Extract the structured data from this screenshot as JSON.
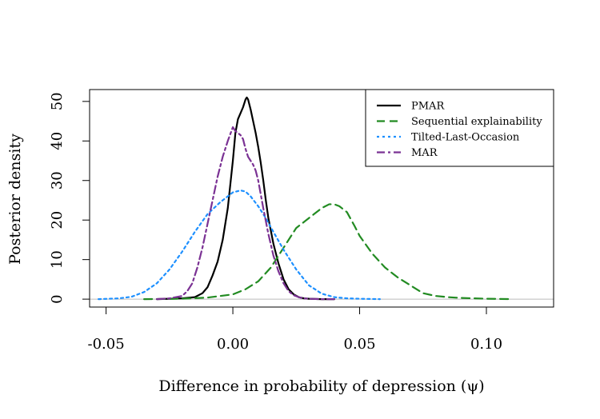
{
  "chart_data": {
    "type": "line",
    "xlabel": "Difference in probability of depression (ψ)",
    "ylabel": "Posterior density",
    "xlim": [
      -0.0565,
      0.1265
    ],
    "ylim": [
      -2,
      53
    ],
    "xticks": [
      -0.05,
      0.0,
      0.05,
      0.1
    ],
    "xtick_labels": [
      "-0.05",
      "0.00",
      "0.05",
      "0.10"
    ],
    "yticks": [
      0,
      10,
      20,
      30,
      40,
      50
    ],
    "ytick_labels": [
      "0",
      "10",
      "20",
      "30",
      "40",
      "50"
    ],
    "legend_position": "top-right",
    "baseline_y": 0,
    "baseline_color": "#bbbbbb",
    "series": [
      {
        "name": "PMAR",
        "color": "#000000",
        "dash": "solid",
        "x": [
          -0.03,
          -0.025,
          -0.02,
          -0.015,
          -0.012,
          -0.01,
          -0.008,
          -0.006,
          -0.004,
          -0.002,
          0.0,
          0.001,
          0.002,
          0.003,
          0.004,
          0.005,
          0.0055,
          0.006,
          0.007,
          0.008,
          0.009,
          0.01,
          0.011,
          0.012,
          0.013,
          0.014,
          0.016,
          0.018,
          0.02,
          0.022,
          0.024,
          0.026,
          0.028,
          0.03,
          0.035,
          0.04
        ],
        "y": [
          0.0,
          0.1,
          0.2,
          0.5,
          1.5,
          3.0,
          6.0,
          9.5,
          15.0,
          23.0,
          35.0,
          42.0,
          45.5,
          47.0,
          48.5,
          50.5,
          51.0,
          50.5,
          48.0,
          45.0,
          42.0,
          38.5,
          34.5,
          30.0,
          25.0,
          20.5,
          14.0,
          9.0,
          5.0,
          2.5,
          1.2,
          0.5,
          0.2,
          0.1,
          0.0,
          0.0
        ]
      },
      {
        "name": "Sequential explainability",
        "color": "#228B22",
        "dash": "10,6",
        "x": [
          -0.035,
          -0.02,
          -0.01,
          0.0,
          0.005,
          0.01,
          0.015,
          0.02,
          0.025,
          0.03,
          0.032,
          0.035,
          0.038,
          0.04,
          0.042,
          0.045,
          0.048,
          0.05,
          0.055,
          0.06,
          0.065,
          0.07,
          0.075,
          0.08,
          0.085,
          0.09,
          0.1,
          0.11
        ],
        "y": [
          0.0,
          0.1,
          0.4,
          1.2,
          2.5,
          4.5,
          8.0,
          13.0,
          18.0,
          20.5,
          21.5,
          23.0,
          24.0,
          24.0,
          23.5,
          22.0,
          18.5,
          16.0,
          11.5,
          8.0,
          5.5,
          3.5,
          1.5,
          0.8,
          0.5,
          0.3,
          0.1,
          0.0
        ]
      },
      {
        "name": "Tilted-Last-Occasion",
        "color": "#1E90FF",
        "dash": "3,4",
        "x": [
          -0.053,
          -0.045,
          -0.04,
          -0.035,
          -0.03,
          -0.025,
          -0.02,
          -0.015,
          -0.01,
          -0.005,
          0.0,
          0.003,
          0.005,
          0.007,
          0.01,
          0.013,
          0.016,
          0.02,
          0.025,
          0.03,
          0.035,
          0.04,
          0.045,
          0.05,
          0.058
        ],
        "y": [
          0.0,
          0.2,
          0.6,
          1.8,
          4.0,
          7.5,
          12.0,
          17.0,
          21.5,
          24.5,
          27.0,
          27.5,
          27.2,
          26.0,
          23.5,
          20.5,
          17.0,
          12.5,
          7.5,
          3.5,
          1.4,
          0.5,
          0.2,
          0.1,
          0.0
        ]
      },
      {
        "name": "MAR",
        "color": "#7B3294",
        "dash": "10,4,3,4",
        "x": [
          -0.03,
          -0.025,
          -0.02,
          -0.018,
          -0.016,
          -0.014,
          -0.012,
          -0.01,
          -0.008,
          -0.006,
          -0.004,
          -0.002,
          0.0,
          0.001,
          0.002,
          0.003,
          0.004,
          0.005,
          0.006,
          0.007,
          0.008,
          0.009,
          0.01,
          0.012,
          0.014,
          0.016,
          0.018,
          0.02,
          0.022,
          0.024,
          0.026,
          0.028,
          0.03,
          0.035,
          0.04
        ],
        "y": [
          0.0,
          0.2,
          0.8,
          2.0,
          4.0,
          8.0,
          13.0,
          19.0,
          25.0,
          31.0,
          36.0,
          40.0,
          43.5,
          42.5,
          42.0,
          41.5,
          40.5,
          38.0,
          36.0,
          35.0,
          34.0,
          32.5,
          30.0,
          23.0,
          16.5,
          11.0,
          7.0,
          4.0,
          2.0,
          1.0,
          0.5,
          0.2,
          0.1,
          0.0,
          0.0
        ]
      }
    ]
  }
}
